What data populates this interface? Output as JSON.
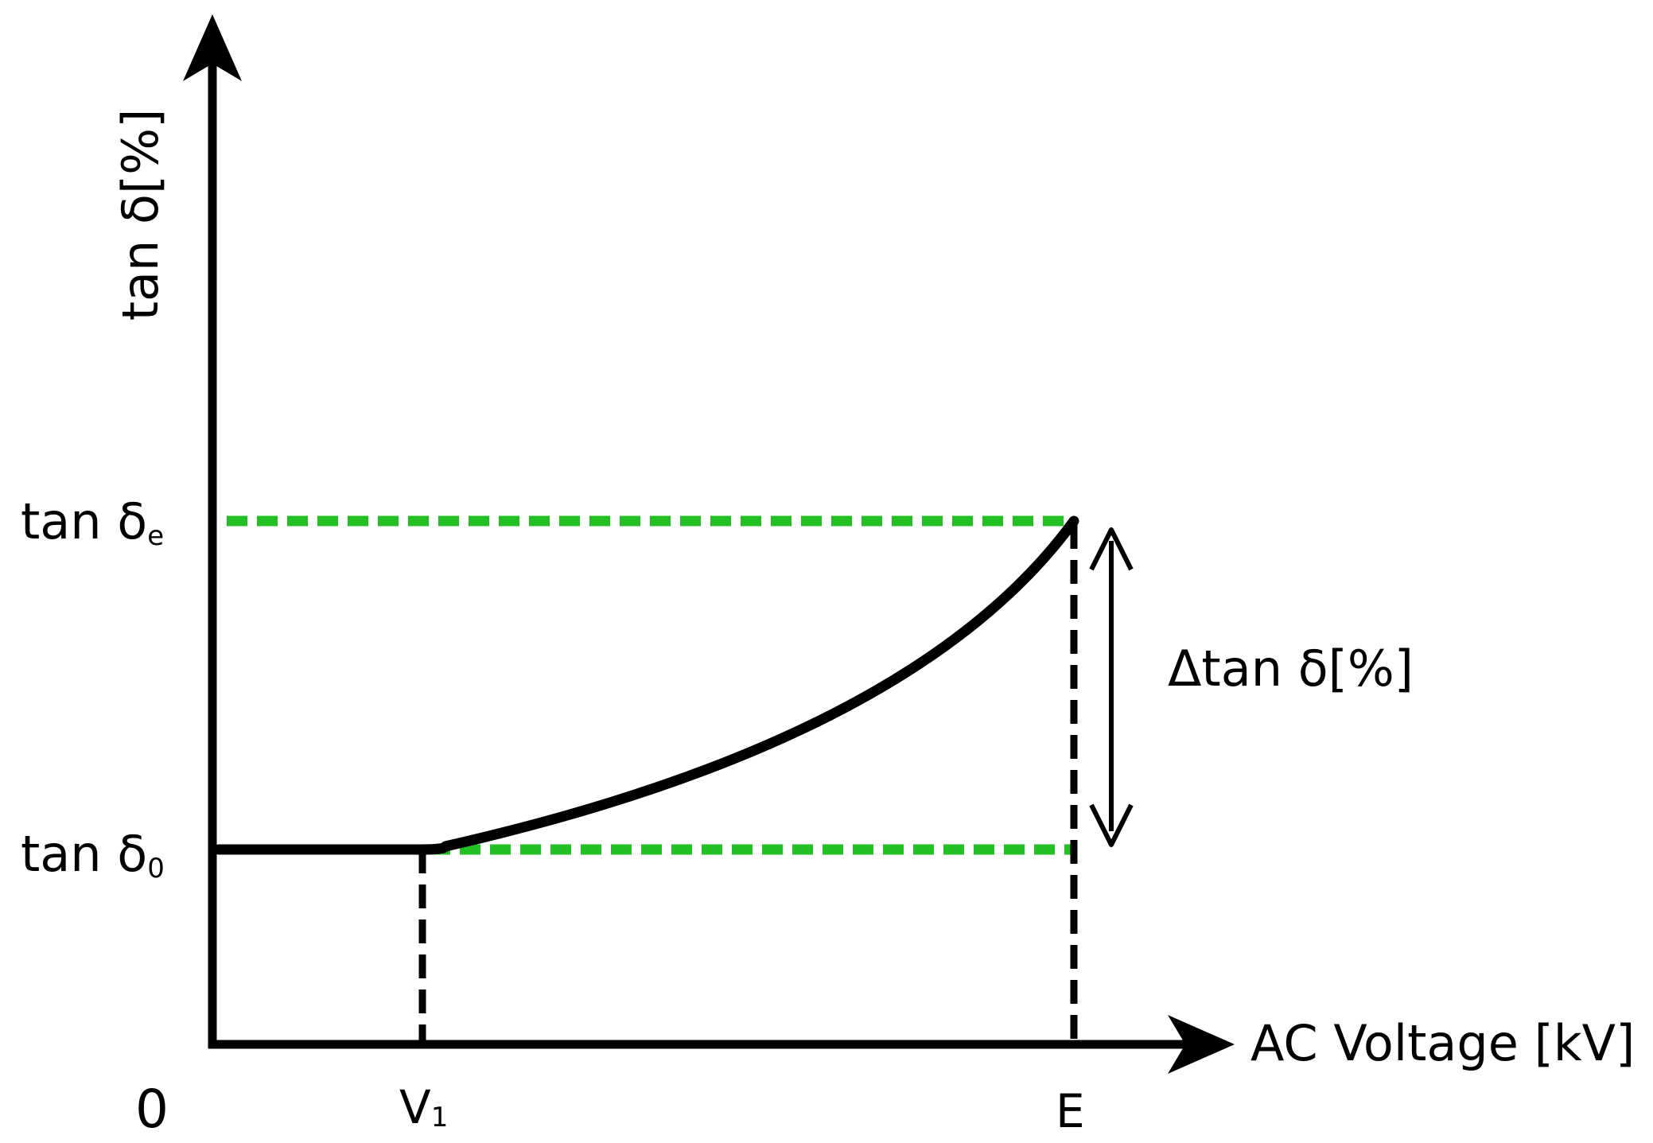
{
  "axes": {
    "y_label": "tan δ[%]",
    "x_label": "AC Voltage [kV]",
    "origin_label": "0"
  },
  "y_ticks": {
    "tan_delta_e": {
      "main": "tan δ",
      "sub": "e"
    },
    "tan_delta_0": {
      "main": "tan δ",
      "sub": "0"
    }
  },
  "x_ticks": {
    "v1": {
      "main": "V",
      "sub": "1"
    },
    "e": {
      "main": "E"
    }
  },
  "annotation": {
    "delta_label": "Δtan δ[%]"
  },
  "colors": {
    "axis": "#000000",
    "curve": "#000000",
    "guide_vertical": "#000000",
    "guide_horizontal": "#22c022"
  },
  "icons": {
    "y_axis_head": "arrow-up-icon",
    "x_axis_head": "arrow-right-icon",
    "delta_range": "double-arrow-vertical-icon"
  }
}
